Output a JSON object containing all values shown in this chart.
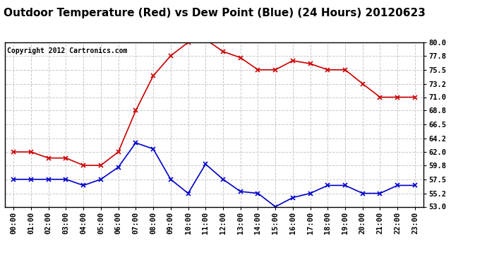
{
  "title": "Outdoor Temperature (Red) vs Dew Point (Blue) (24 Hours) 20120623",
  "copyright_text": "Copyright 2012 Cartronics.com",
  "x_labels": [
    "00:00",
    "01:00",
    "02:00",
    "03:00",
    "04:00",
    "05:00",
    "06:00",
    "07:00",
    "08:00",
    "09:00",
    "10:00",
    "11:00",
    "12:00",
    "13:00",
    "14:00",
    "15:00",
    "16:00",
    "17:00",
    "18:00",
    "19:00",
    "20:00",
    "21:00",
    "22:00",
    "23:00"
  ],
  "temp_red": [
    62.0,
    62.0,
    61.0,
    61.0,
    59.8,
    59.8,
    62.0,
    68.8,
    74.5,
    77.8,
    80.0,
    80.5,
    78.5,
    77.5,
    75.5,
    75.5,
    77.0,
    76.5,
    75.5,
    75.5,
    73.2,
    71.0,
    71.0,
    71.0
  ],
  "dew_blue": [
    57.5,
    57.5,
    57.5,
    57.5,
    56.5,
    57.5,
    59.5,
    63.5,
    62.5,
    57.5,
    55.2,
    60.0,
    57.5,
    55.5,
    55.2,
    53.0,
    54.5,
    55.2,
    56.5,
    56.5,
    55.2,
    55.2,
    56.5,
    56.5
  ],
  "ylim": [
    53.0,
    80.0
  ],
  "yticks": [
    53.0,
    55.2,
    57.5,
    59.8,
    62.0,
    64.2,
    66.5,
    68.8,
    71.0,
    73.2,
    75.5,
    77.8,
    80.0
  ],
  "red_color": "#cc0000",
  "blue_color": "#0000cc",
  "bg_color": "#ffffff",
  "grid_color": "#c8c8c8",
  "title_fontsize": 11,
  "copyright_fontsize": 7,
  "tick_fontsize": 7.5
}
